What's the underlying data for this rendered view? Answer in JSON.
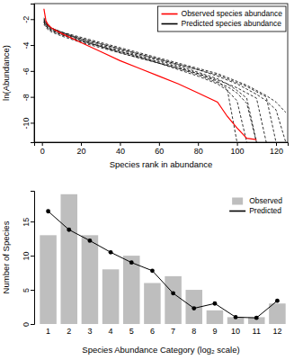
{
  "chart_data": [
    {
      "type": "line",
      "x_label": "Species rank in abundance",
      "y_label": "ln(Abundance)",
      "x": [
        1,
        2,
        3,
        5,
        10,
        20,
        30,
        40,
        50,
        60,
        70,
        80,
        90,
        95,
        100,
        105,
        110,
        115,
        120,
        125
      ],
      "xlim": [
        -4,
        126
      ],
      "xticks": [
        0,
        20,
        40,
        60,
        80,
        100,
        120
      ],
      "ylim": [
        -11.5,
        -0.8
      ],
      "yticks": [
        -10,
        -8,
        -6,
        -4,
        -2
      ],
      "legend": "top-right",
      "series": [
        {
          "name": "Observed species abundance",
          "color": "#ff0000",
          "line_style": "solid",
          "values": [
            -1.2,
            -2.1,
            -2.4,
            -2.7,
            -3.1,
            -3.8,
            -4.5,
            -5.2,
            -5.8,
            -6.4,
            -7.0,
            -7.7,
            -8.4,
            -9.5,
            -10.4,
            -11.2,
            -11.3,
            null,
            null,
            null
          ]
        },
        {
          "name": "Predicted species abundance",
          "color": "#000000",
          "line_style": "dashed",
          "values": [
            -2.0,
            -2.3,
            -2.5,
            -2.7,
            -3.0,
            -3.5,
            -3.9,
            -4.3,
            -4.7,
            -5.1,
            -5.5,
            -5.9,
            -6.4,
            -6.7,
            -7.0,
            -7.4,
            -7.8,
            -8.3,
            -9.0,
            -11.5
          ]
        },
        {
          "name": "Predicted species abundance",
          "color": "#000000",
          "line_style": "dashed",
          "values": [
            -2.1,
            -2.4,
            -2.6,
            -2.8,
            -3.1,
            -3.6,
            -4.0,
            -4.4,
            -4.8,
            -5.2,
            -5.6,
            -6.1,
            -6.6,
            -7.0,
            -7.5,
            -8.1,
            -11.5,
            null,
            null,
            null
          ]
        },
        {
          "name": "Predicted species abundance",
          "color": "#000000",
          "line_style": "dashed",
          "values": [
            -2.3,
            -2.5,
            -2.7,
            -2.9,
            -3.2,
            -3.7,
            -4.1,
            -4.5,
            -4.9,
            -5.3,
            -5.7,
            -6.2,
            -6.8,
            -7.4,
            -11.5,
            null,
            null,
            null,
            null,
            null
          ]
        },
        {
          "name": "Predicted species abundance",
          "color": "#000000",
          "line_style": "dashed",
          "values": [
            -2.2,
            -2.4,
            -2.6,
            -2.8,
            -3.1,
            -3.5,
            -3.9,
            -4.3,
            -4.7,
            -5.1,
            -5.5,
            -5.9,
            -6.3,
            -6.6,
            -6.9,
            -7.2,
            -7.6,
            -8.0,
            -11.5,
            null
          ]
        },
        {
          "name": "Predicted species abundance",
          "color": "#000000",
          "line_style": "dashed",
          "values": [
            -1.9,
            -2.2,
            -2.5,
            -2.7,
            -3.0,
            -3.6,
            -4.1,
            -4.6,
            -5.0,
            -5.4,
            -5.9,
            -6.4,
            -7.0,
            -7.5,
            -8.3,
            -11.5,
            null,
            null,
            null,
            null
          ]
        },
        {
          "name": "Predicted species abundance",
          "color": "#000000",
          "line_style": "dashed",
          "values": [
            -2.4,
            -2.6,
            -2.8,
            -3.0,
            -3.3,
            -3.8,
            -4.2,
            -4.6,
            -5.0,
            -5.4,
            -5.8,
            -6.2,
            -6.7,
            -7.0,
            -7.3,
            -7.7,
            -8.1,
            -11.5,
            null,
            null
          ]
        },
        {
          "name": "Predicted species abundance",
          "color": "#000000",
          "line_style": "dashed",
          "values": [
            -2.1,
            -2.3,
            -2.5,
            -2.7,
            -3.0,
            -3.4,
            -3.8,
            -4.2,
            -4.6,
            -5.0,
            -5.4,
            -5.8,
            -6.2,
            -6.5,
            -6.8,
            -7.1,
            -7.5,
            -7.9,
            -8.4,
            -9.2
          ]
        },
        {
          "name": "Predicted species abundance",
          "color": "#000000",
          "line_style": "dashed",
          "values": [
            -2.2,
            -2.5,
            -2.7,
            -2.9,
            -3.2,
            -3.7,
            -4.1,
            -4.5,
            -4.9,
            -5.4,
            -5.8,
            -6.3,
            -6.9,
            -7.2,
            -7.7,
            -8.5,
            -11.5,
            null,
            null,
            null
          ]
        }
      ]
    },
    {
      "type": "bar",
      "x_label": "Species Abundance Category (log₂ scale)",
      "y_label": "Number of Species",
      "categories": [
        "1",
        "2",
        "3",
        "4",
        "5",
        "6",
        "7",
        "8",
        "9",
        "10",
        "11",
        "12"
      ],
      "ylim": [
        0,
        19.5
      ],
      "yticks": [
        0,
        5,
        10,
        15
      ],
      "legend": "top-right",
      "series": [
        {
          "name": "Observed",
          "type": "bar",
          "color": "#bebebe",
          "values": [
            13,
            19,
            13,
            8,
            10,
            6,
            7,
            5,
            2,
            1,
            1,
            3
          ]
        },
        {
          "name": "Predicted",
          "type": "line",
          "color": "#000000",
          "marker": "circle",
          "line_style": "solid",
          "values": [
            16.5,
            13.8,
            12.2,
            10.5,
            9,
            7.8,
            4.5,
            2.3,
            3,
            1,
            0.9,
            3.4
          ]
        }
      ]
    }
  ]
}
